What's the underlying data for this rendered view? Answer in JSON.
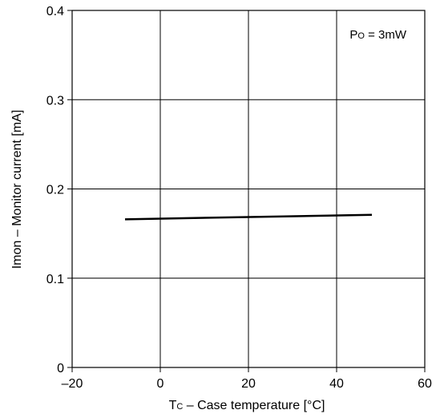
{
  "chart_data": {
    "type": "line",
    "xlabel": {
      "main": "T",
      "sub": "C",
      "rest": " – Case temperature [°C]"
    },
    "ylabel": "Imon – Monitor current [mA]",
    "xlim": [
      -20,
      60
    ],
    "ylim": [
      0,
      0.4
    ],
    "x_ticks": [
      "–20",
      "0",
      "20",
      "40",
      "60"
    ],
    "x_tick_values": [
      -20,
      0,
      20,
      40,
      60
    ],
    "y_ticks": [
      "0",
      "0.1",
      "0.2",
      "0.3",
      "0.4"
    ],
    "y_tick_values": [
      0,
      0.1,
      0.2,
      0.3,
      0.4
    ],
    "grid": true,
    "annotation": {
      "main": "P",
      "sub": "O",
      "rest": " = 3mW"
    },
    "series": [
      {
        "x": [
          -8,
          48
        ],
        "y": [
          0.166,
          0.171
        ]
      }
    ],
    "colors": {
      "line": "#000000",
      "grid": "#000000",
      "background": "#ffffff"
    }
  }
}
